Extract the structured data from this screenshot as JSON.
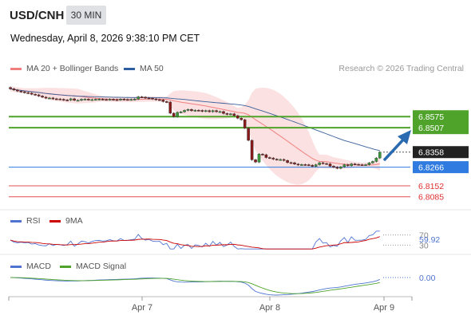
{
  "header": {
    "symbol": "USD/CNH",
    "timeframe": "30 MIN",
    "datetime": "Wednesday, April 8, 2026 9:38:10 PM CET"
  },
  "legend": {
    "ma20_label": "MA 20 + Bollinger Bands",
    "ma20_color": "#f08080",
    "ma50_label": "MA 50",
    "ma50_color": "#2d5fa0",
    "credit": "Research © 2026 Trading Central"
  },
  "rsi_legend": {
    "rsi_label": "RSI",
    "rsi_color": "#4f74d0",
    "ma_label": "9MA",
    "ma_color": "#cc0000"
  },
  "macd_legend": {
    "macd_label": "MACD",
    "macd_color": "#4f74d0",
    "signal_label": "MACD Signal",
    "signal_color": "#4fa32a"
  },
  "chart_data": {
    "type": "candlestick",
    "y_range": [
      6.803,
      6.882
    ],
    "x_labels": [
      "Apr 7",
      "Apr 8",
      "Apr 9"
    ],
    "levels": [
      {
        "value": 6.8575,
        "label": "6.8575",
        "kind": "resistance",
        "color": "#4fa32a"
      },
      {
        "value": 6.8507,
        "label": "6.8507",
        "kind": "resistance",
        "color": "#4fa32a"
      },
      {
        "value": 6.8358,
        "label": "6.8358",
        "kind": "current",
        "color": "#222222"
      },
      {
        "value": 6.8266,
        "label": "6.8266",
        "kind": "pivot",
        "color": "#2f7be0"
      },
      {
        "value": 6.8152,
        "label": "6.8152",
        "kind": "support",
        "color": "#e05050"
      },
      {
        "value": 6.8085,
        "label": "6.8085",
        "kind": "support",
        "color": "#e05050"
      }
    ],
    "rsi": {
      "value_label": "59.92",
      "level_labels": [
        "70",
        "30"
      ]
    },
    "macd": {
      "value_label": "0.00"
    },
    "candles_close": [
      6.8745,
      6.8738,
      6.8731,
      6.8727,
      6.8722,
      6.8719,
      6.8712,
      6.8708,
      6.8701,
      6.8694,
      6.8688,
      6.8689,
      6.8684,
      6.8683,
      6.8681,
      6.8677,
      6.8676,
      6.8684,
      6.8675,
      6.8675,
      6.8681,
      6.8682,
      6.8678,
      6.8679,
      6.8681,
      6.8682,
      6.868,
      6.8679,
      6.8681,
      6.8679,
      6.8677,
      6.8682,
      6.868,
      6.8679,
      6.868,
      6.8682,
      6.8696,
      6.8694,
      6.8689,
      6.8688,
      6.8683,
      6.8679,
      6.8677,
      6.8667,
      6.8664,
      6.8596,
      6.8575,
      6.8601,
      6.8604,
      6.8613,
      6.8619,
      6.8611,
      6.8614,
      6.8613,
      6.8607,
      6.8612,
      6.8605,
      6.8612,
      6.8605,
      6.8606,
      6.8594,
      6.8589,
      6.8592,
      6.8581,
      6.8565,
      6.8556,
      6.8505,
      6.843,
      6.8311,
      6.8297,
      6.8346,
      6.8342,
      6.8325,
      6.8322,
      6.8315,
      6.8312,
      6.8313,
      6.8307,
      6.8294,
      6.8293,
      6.8285,
      6.8279,
      6.8282,
      6.8281,
      6.8278,
      6.8271,
      6.8281,
      6.8293,
      6.8288,
      6.8286,
      6.8272,
      6.8266,
      6.8259,
      6.8268,
      6.8281,
      6.8275,
      6.8286,
      6.8283,
      6.8281,
      6.828,
      6.8281,
      6.8292,
      6.8301,
      6.8322,
      6.8358
    ]
  }
}
